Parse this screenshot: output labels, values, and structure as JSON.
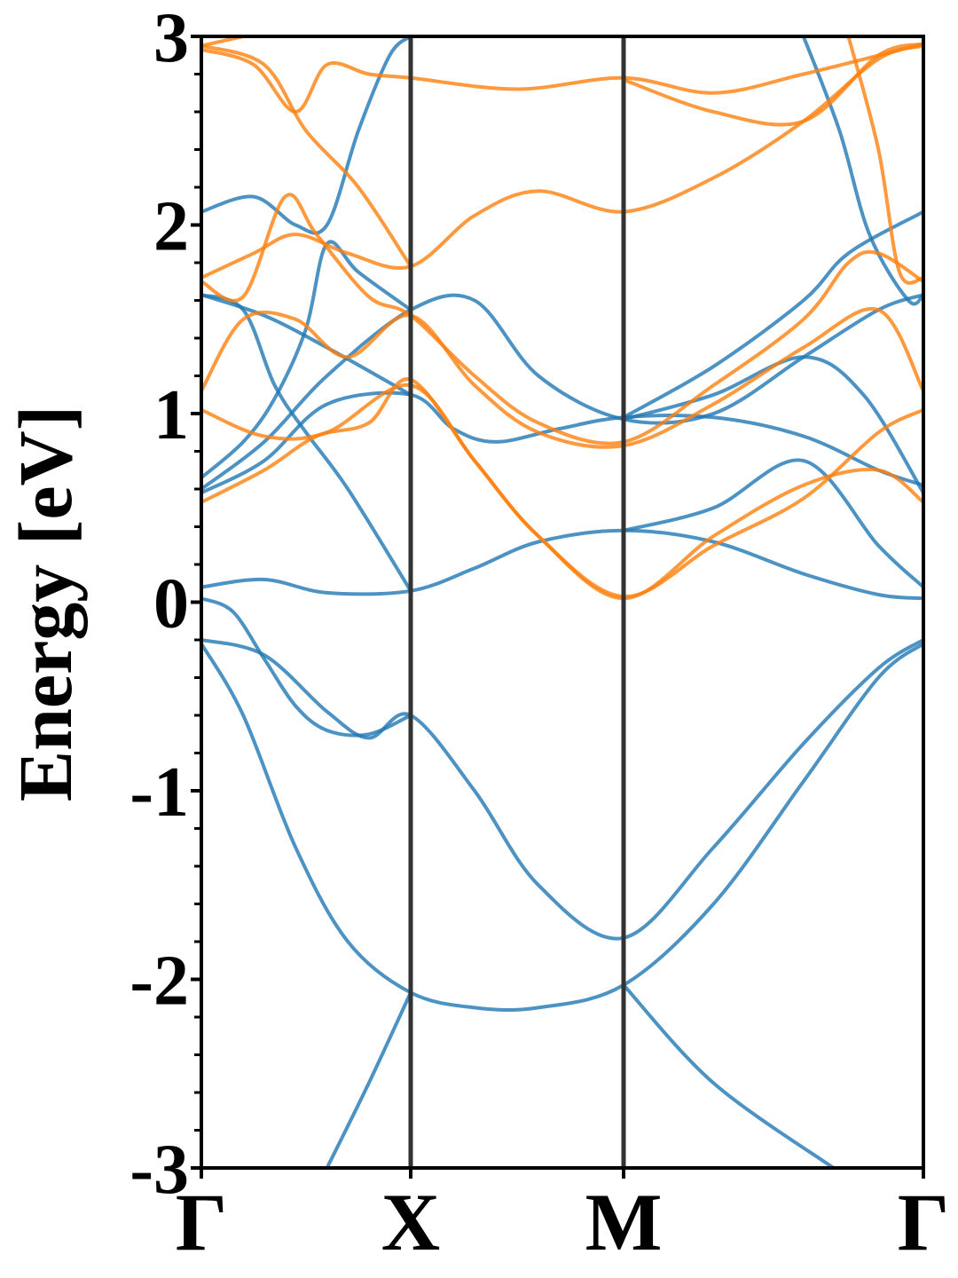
{
  "chart_data": {
    "type": "line",
    "title": "",
    "ylabel": "Energy [eV]",
    "xlabel": "",
    "ylim": [
      -3,
      3
    ],
    "xlim": [
      0,
      3
    ],
    "yticks": [
      3,
      2,
      1,
      0,
      -1,
      -2,
      -3
    ],
    "ytick_labels": [
      "3",
      "2",
      "1",
      "0",
      "-1",
      "-2",
      "-3"
    ],
    "kpoints": [
      {
        "label": "Γ",
        "x": 0
      },
      {
        "label": "X",
        "x": 1
      },
      {
        "label": "M",
        "x": 2
      },
      {
        "label": "Γ",
        "x": 3
      }
    ],
    "grid": false,
    "legend": "none",
    "colors": {
      "series_a": "#1f77b4",
      "series_b": "#ff7f0e",
      "kpath_lines": "#333333",
      "axes": "#000000"
    },
    "series": [
      {
        "color": "#1f77b4",
        "bands": [
          [
            [
              0,
              -0.2
            ],
            [
              0.3,
              -0.28
            ],
            [
              0.6,
              -0.58
            ],
            [
              0.8,
              -0.72
            ],
            [
              1,
              -0.6
            ],
            [
              1.3,
              -1.0
            ],
            [
              1.6,
              -1.5
            ],
            [
              2,
              -1.78
            ],
            [
              2.3,
              -1.3
            ],
            [
              2.6,
              -0.75
            ],
            [
              2.85,
              -0.35
            ],
            [
              3,
              -0.2
            ]
          ],
          [
            [
              0,
              -0.22
            ],
            [
              0.2,
              -0.6
            ],
            [
              0.45,
              -1.3
            ],
            [
              0.7,
              -1.8
            ],
            [
              1,
              -2.07
            ],
            [
              1.3,
              -2.15
            ],
            [
              1.6,
              -2.15
            ],
            [
              2,
              -2.03
            ],
            [
              2.3,
              -1.6
            ],
            [
              2.6,
              -0.95
            ],
            [
              2.85,
              -0.4
            ],
            [
              3,
              -0.22
            ]
          ],
          [
            [
              0.6,
              -3.0
            ],
            [
              0.8,
              -2.55
            ],
            [
              1,
              -2.07
            ]
          ],
          [
            [
              2,
              -2.03
            ],
            [
              2.3,
              -2.55
            ],
            [
              2.7,
              -3.0
            ]
          ],
          [
            [
              0,
              0.08
            ],
            [
              0.3,
              0.12
            ],
            [
              0.6,
              0.05
            ],
            [
              1,
              0.06
            ],
            [
              1.3,
              0.18
            ],
            [
              1.6,
              0.32
            ],
            [
              2,
              0.38
            ],
            [
              2.3,
              0.32
            ],
            [
              2.6,
              0.15
            ],
            [
              2.85,
              0.04
            ],
            [
              3,
              0.02
            ]
          ],
          [
            [
              0,
              0.02
            ],
            [
              0.15,
              -0.05
            ],
            [
              0.3,
              -0.3
            ],
            [
              0.45,
              -0.55
            ],
            [
              0.6,
              -0.68
            ],
            [
              0.8,
              -0.7
            ],
            [
              1,
              -0.6
            ]
          ],
          [
            [
              2,
              0.38
            ],
            [
              2.3,
              0.5
            ],
            [
              2.6,
              0.75
            ],
            [
              2.85,
              0.3
            ],
            [
              3,
              0.08
            ]
          ],
          [
            [
              0,
              0.6
            ],
            [
              0.3,
              0.85
            ],
            [
              0.6,
              1.2
            ],
            [
              1,
              1.55
            ],
            [
              1.3,
              1.6
            ],
            [
              1.6,
              1.2
            ],
            [
              2,
              0.97
            ],
            [
              2.3,
              1.0
            ],
            [
              2.6,
              1.3
            ],
            [
              2.85,
              1.55
            ],
            [
              3,
              1.63
            ]
          ],
          [
            [
              0,
              0.58
            ],
            [
              0.3,
              0.75
            ],
            [
              0.6,
              1.05
            ],
            [
              1,
              1.1
            ],
            [
              1.2,
              0.92
            ],
            [
              1.4,
              0.85
            ],
            [
              1.7,
              0.92
            ],
            [
              2,
              0.98
            ],
            [
              2.3,
              0.98
            ],
            [
              2.6,
              0.88
            ],
            [
              2.85,
              0.7
            ],
            [
              3,
              0.62
            ]
          ],
          [
            [
              0,
              1.63
            ],
            [
              0.2,
              1.55
            ],
            [
              0.35,
              1.15
            ],
            [
              0.5,
              0.9
            ],
            [
              0.7,
              0.6
            ],
            [
              1,
              0.06
            ]
          ],
          [
            [
              0,
              1.63
            ],
            [
              0.3,
              1.52
            ],
            [
              0.6,
              1.35
            ],
            [
              1,
              1.1
            ]
          ],
          [
            [
              0,
              0.66
            ],
            [
              0.2,
              0.85
            ],
            [
              0.35,
              1.08
            ],
            [
              0.5,
              1.45
            ],
            [
              0.6,
              1.9
            ],
            [
              0.75,
              1.75
            ],
            [
              1,
              1.55
            ]
          ],
          [
            [
              2,
              0.98
            ],
            [
              2.3,
              1.25
            ],
            [
              2.6,
              1.6
            ],
            [
              2.75,
              1.85
            ],
            [
              3,
              2.07
            ]
          ],
          [
            [
              2,
              0.97
            ],
            [
              2.3,
              1.1
            ],
            [
              2.6,
              1.3
            ],
            [
              2.8,
              1.1
            ],
            [
              3,
              0.58
            ]
          ],
          [
            [
              0,
              2.07
            ],
            [
              0.25,
              2.15
            ],
            [
              0.45,
              2.0
            ],
            [
              0.6,
              2.0
            ],
            [
              0.75,
              2.5
            ],
            [
              0.9,
              2.9
            ],
            [
              1,
              3.0
            ]
          ],
          [
            [
              2.6,
              3.0
            ],
            [
              2.72,
              2.5
            ],
            [
              2.82,
              1.95
            ],
            [
              2.95,
              1.6
            ],
            [
              3,
              1.63
            ]
          ]
        ]
      },
      {
        "color": "#ff7f0e",
        "bands": [
          [
            [
              0,
              0.53
            ],
            [
              0.3,
              0.7
            ],
            [
              0.55,
              0.88
            ],
            [
              0.8,
              0.95
            ],
            [
              1,
              1.18
            ],
            [
              1.3,
              0.75
            ],
            [
              1.6,
              0.35
            ],
            [
              2,
              0.02
            ],
            [
              2.3,
              0.35
            ],
            [
              2.6,
              0.62
            ],
            [
              2.85,
              0.7
            ],
            [
              3,
              0.53
            ]
          ],
          [
            [
              0,
              1.02
            ],
            [
              0.3,
              0.88
            ],
            [
              0.6,
              0.9
            ],
            [
              1,
              1.15
            ],
            [
              1.3,
              0.75
            ],
            [
              1.6,
              0.35
            ],
            [
              2,
              0.03
            ],
            [
              2.3,
              0.3
            ],
            [
              2.6,
              0.55
            ],
            [
              2.85,
              0.9
            ],
            [
              3,
              1.02
            ]
          ],
          [
            [
              0,
              1.12
            ],
            [
              0.2,
              1.5
            ],
            [
              0.45,
              1.5
            ],
            [
              0.7,
              1.3
            ],
            [
              1,
              1.52
            ],
            [
              1.3,
              1.15
            ],
            [
              1.6,
              0.9
            ],
            [
              2,
              0.83
            ],
            [
              2.3,
              1.05
            ],
            [
              2.6,
              1.35
            ],
            [
              2.85,
              1.55
            ],
            [
              3,
              1.12
            ]
          ],
          [
            [
              0,
              1.7
            ],
            [
              0.2,
              1.62
            ],
            [
              0.4,
              2.15
            ],
            [
              0.55,
              1.95
            ],
            [
              0.8,
              1.62
            ],
            [
              1,
              1.52
            ],
            [
              1.3,
              1.2
            ],
            [
              1.6,
              0.95
            ],
            [
              2,
              0.85
            ],
            [
              2.3,
              1.15
            ],
            [
              2.6,
              1.5
            ],
            [
              2.75,
              1.8
            ],
            [
              2.85,
              1.85
            ],
            [
              3,
              1.7
            ]
          ],
          [
            [
              0,
              1.72
            ],
            [
              0.25,
              1.85
            ],
            [
              0.45,
              1.95
            ],
            [
              0.7,
              1.85
            ],
            [
              1,
              1.78
            ],
            [
              1.3,
              2.05
            ],
            [
              1.6,
              2.18
            ],
            [
              2,
              2.07
            ],
            [
              2.3,
              2.25
            ],
            [
              2.6,
              2.55
            ],
            [
              2.85,
              2.88
            ],
            [
              3,
              2.95
            ]
          ],
          [
            [
              0,
              2.95
            ],
            [
              0.3,
              2.85
            ],
            [
              0.5,
              2.5
            ],
            [
              0.75,
              2.2
            ],
            [
              1,
              1.78
            ]
          ],
          [
            [
              0,
              2.93
            ],
            [
              0.25,
              2.85
            ],
            [
              0.45,
              2.6
            ],
            [
              0.6,
              2.85
            ],
            [
              0.8,
              2.8
            ],
            [
              1,
              2.78
            ],
            [
              1.5,
              2.72
            ],
            [
              2,
              2.78
            ],
            [
              2.3,
              2.7
            ],
            [
              2.6,
              2.8
            ],
            [
              3,
              2.96
            ]
          ],
          [
            [
              0,
              2.95
            ],
            [
              0.2,
              3.0
            ]
          ],
          [
            [
              2,
              2.77
            ],
            [
              2.3,
              2.6
            ],
            [
              2.6,
              2.55
            ],
            [
              2.85,
              2.9
            ],
            [
              3,
              2.96
            ]
          ],
          [
            [
              2.75,
              3.0
            ],
            [
              2.85,
              2.4
            ],
            [
              2.92,
              1.75
            ],
            [
              3,
              1.72
            ]
          ]
        ]
      }
    ]
  }
}
